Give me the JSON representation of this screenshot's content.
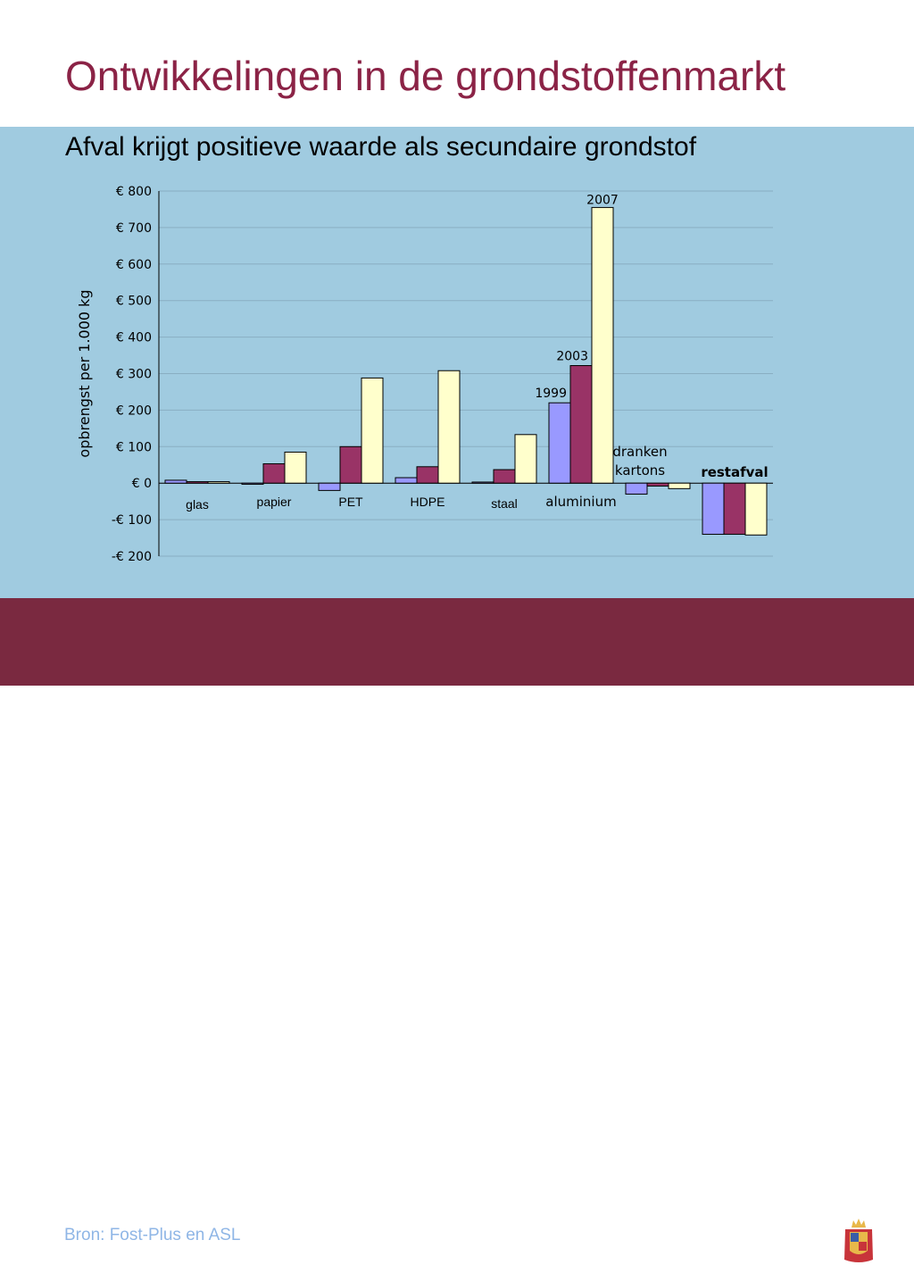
{
  "header": {
    "title": "Ontwikkelingen in de grondstoffenmarkt"
  },
  "subtitle": "Afval krijgt positieve waarde als secundaire grondstof",
  "footer": {
    "source": "Bron: Fost-Plus en ASL",
    "brand": "provincie limburg"
  },
  "colors": {
    "title": "#8b2346",
    "panel_bg": "#a0cbe0",
    "footer_bg": "#7a2940",
    "source_text": "#8fb6e6",
    "series_1999": "#9999ff",
    "series_2003": "#993366",
    "series_2007": "#ffffcc",
    "bar_stroke": "#000000",
    "gridline": "#89aec2",
    "crest_gold": "#e8b84a",
    "crest_red": "#c8343a",
    "crest_blue": "#3a5da8"
  },
  "icons": {
    "crest": "provincial-crest-icon"
  },
  "chart_data": {
    "type": "bar",
    "ylabel": "opbrengst per 1.000 kg",
    "xlabel": "",
    "ylim": [
      -200,
      800
    ],
    "yticks": [
      -200,
      -100,
      0,
      100,
      200,
      300,
      400,
      500,
      600,
      700,
      800
    ],
    "ytick_labels": [
      "-€ 200",
      "-€ 100",
      "€ 0",
      "€ 100",
      "€ 200",
      "€ 300",
      "€ 400",
      "€ 500",
      "€ 600",
      "€ 700",
      "€ 800"
    ],
    "grid": true,
    "legend": "none (series labels annotated on aluminium bars)",
    "categories": [
      "glas",
      "papier",
      "PET",
      "HDPE",
      "staal",
      "aluminium",
      "dranken kartons",
      "restafval"
    ],
    "category_lines": [
      [
        "glas"
      ],
      [
        "papier"
      ],
      [
        "PET"
      ],
      [
        "HDPE"
      ],
      [
        "staal"
      ],
      [
        "aluminium"
      ],
      [
        "dranken",
        "kartons"
      ],
      [
        "restafval"
      ]
    ],
    "series": [
      {
        "name": "1999",
        "values": [
          8,
          -3,
          -20,
          15,
          3,
          220,
          -30,
          -140
        ]
      },
      {
        "name": "2003",
        "values": [
          4,
          53,
          100,
          45,
          37,
          322,
          -8,
          -140
        ]
      },
      {
        "name": "2007",
        "values": [
          4,
          85,
          288,
          308,
          133,
          755,
          -15,
          -142
        ]
      }
    ]
  }
}
